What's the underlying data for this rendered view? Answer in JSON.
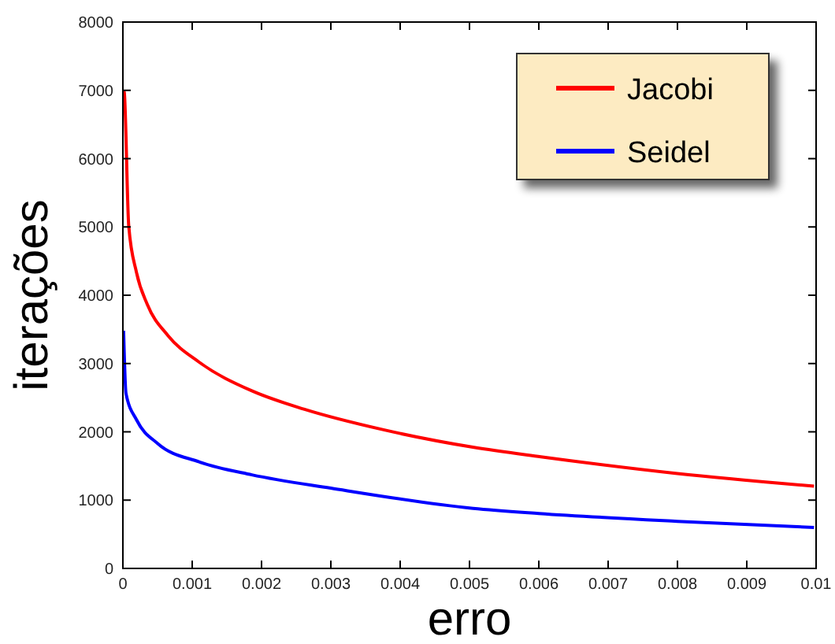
{
  "chart_data": {
    "type": "line",
    "xlabel": "erro",
    "ylabel": "iterações",
    "xlim": [
      0,
      0.01
    ],
    "xticks": [
      0,
      0.001,
      0.002,
      0.003,
      0.004,
      0.005,
      0.006,
      0.007,
      0.008,
      0.009,
      0.01
    ],
    "ylim": [
      0,
      8000
    ],
    "yticks": [
      0,
      1000,
      2000,
      3000,
      4000,
      5000,
      6000,
      7000,
      8000
    ],
    "legend": "top right",
    "grid": false,
    "series": [
      {
        "name": "Jacobi",
        "color": "#ff0000",
        "x": [
          1e-05,
          2e-05,
          8.4e-05,
          0.000197,
          0.00035,
          0.00065,
          0.0011,
          0.00186,
          0.00262,
          0.00376,
          0.00505,
          0.00603,
          0.008,
          0.00997
        ],
        "values": [
          7000,
          6970,
          5020,
          4330,
          3870,
          3410,
          3020,
          2600,
          2330,
          2030,
          1775,
          1635,
          1390,
          1205
        ]
      },
      {
        "name": "Seidel",
        "color": "#0000ff",
        "x": [
          1e-05,
          4.5e-05,
          0.0002,
          0.0005,
          0.0011,
          0.00186,
          0.003,
          0.00505,
          0.006,
          0.008,
          0.00997
        ],
        "values": [
          3480,
          2560,
          2170,
          1830,
          1560,
          1370,
          1175,
          880,
          805,
          690,
          600
        ]
      }
    ]
  }
}
